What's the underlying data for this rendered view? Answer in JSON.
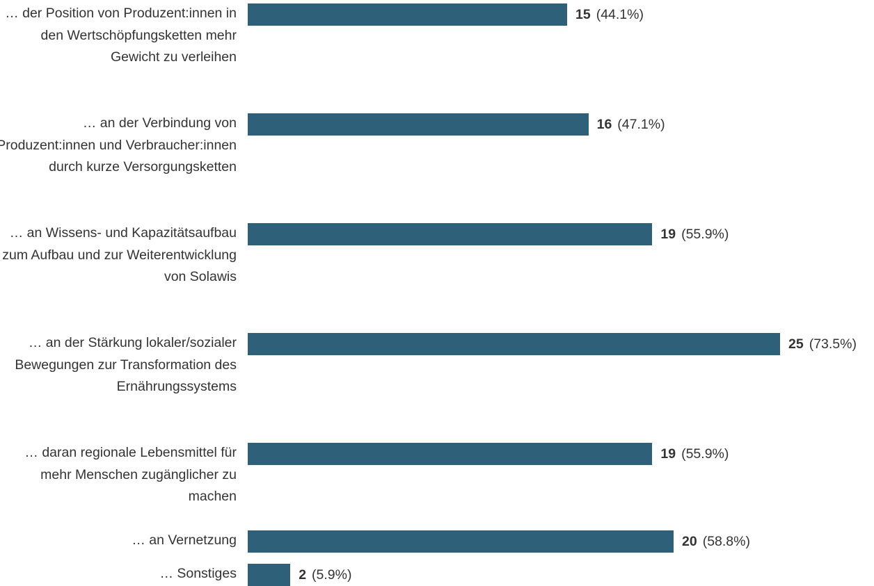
{
  "chart_data": {
    "type": "bar",
    "orientation": "horizontal",
    "bar_color": "#2e6079",
    "text_color": "#333333",
    "categories": [
      "… der Position von Produzent:innen in den Wertschöpfungsketten mehr Gewicht zu verleihen",
      "… an der Verbindung von Produzent:innen und Verbraucher:innen durch kurze Versorgungsketten",
      "… an Wissens- und Kapazitätsaufbau zum Aufbau und zur Weiterentwicklung von Solawis",
      "… an der Stärkung lokaler/sozialer Bewegungen zur Transformation des Ernährungssystems",
      "… daran regionale Lebensmittel für mehr Menschen zugänglicher zu machen",
      "… an Vernetzung",
      "… Sonstiges"
    ],
    "values": [
      15,
      16,
      19,
      25,
      19,
      20,
      2
    ],
    "percent_labels": [
      "(44.1%)",
      "(47.1%)",
      "(55.9%)",
      "(73.5%)",
      "(55.9%)",
      "(58.8%)",
      "(5.9%)"
    ],
    "xlim": [
      0,
      25
    ]
  }
}
